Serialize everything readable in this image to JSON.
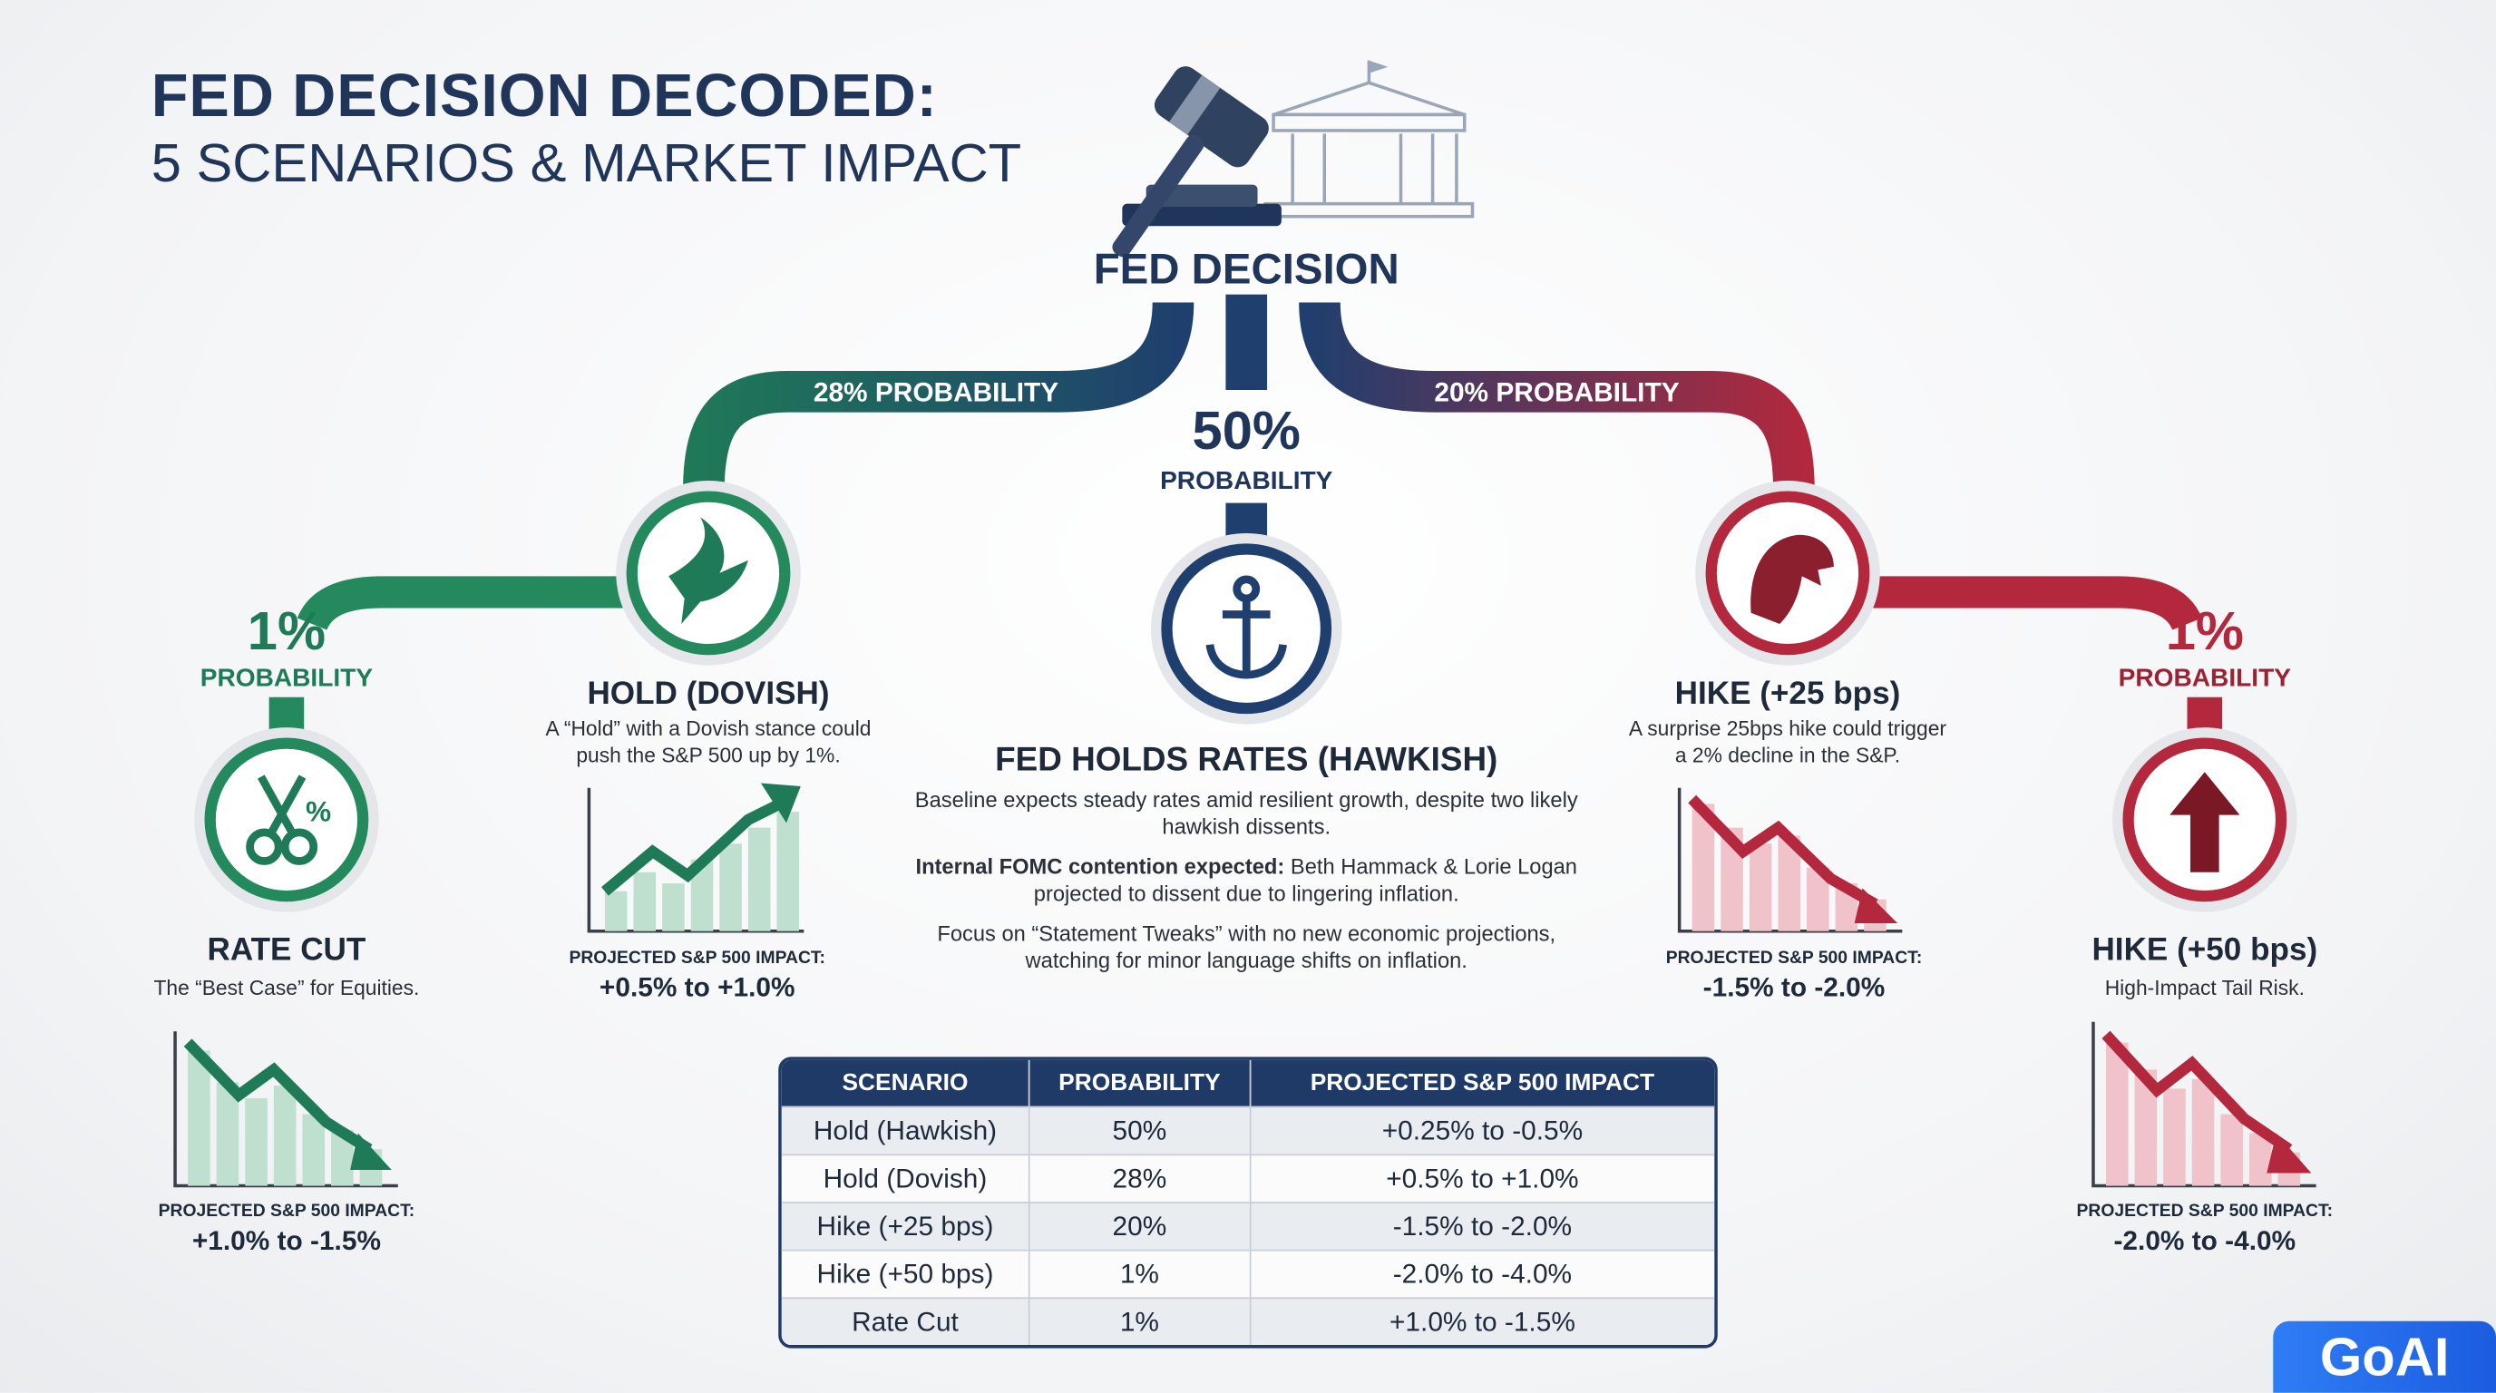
{
  "header": {
    "title": "FED DECISION DECODED:",
    "subtitle": "5 SCENARIOS & MARKET IMPACT"
  },
  "hub": {
    "label": "FED DECISION"
  },
  "branches": {
    "left": "28% PROBABILITY",
    "right": "20% PROBABILITY"
  },
  "center": {
    "probability": "50%",
    "probability_label": "PROBABILITY",
    "title": "FED HOLDS RATES (HAWKISH)",
    "paragraph_1": "Baseline expects steady rates amid resilient growth, despite two likely hawkish dissents.",
    "paragraph_2_bold": "Internal FOMC contention expected:",
    "paragraph_2": "Beth Hammack & Lorie Logan projected to dissent due to lingering inflation.",
    "paragraph_3": "Focus on “Statement Tweaks” with no new economic projections, watching for minor language shifts on inflation."
  },
  "scenarios": [
    {
      "probability": "1%",
      "probability_label": "PROBABILITY",
      "icon_label": "%",
      "name": "RATE CUT",
      "description": "The “Best Case” for Equities.",
      "impact_label": "PROJECTED S&P 500 IMPACT:",
      "impact": "+1.0% to -1.5%"
    },
    {
      "name": "HOLD (DOVISH)",
      "description": "A “Hold” with a Dovish stance could push the S&P 500 up by 1%.",
      "impact_label": "PROJECTED S&P 500 IMPACT:",
      "impact": "+0.5% to +1.0%"
    },
    {
      "name": "HIKE (+25 bps)",
      "description": "A surprise 25bps hike could trigger a 2% decline in the S&P.",
      "impact_label": "PROJECTED S&P 500 IMPACT:",
      "impact": "-1.5% to -2.0%"
    },
    {
      "probability": "1%",
      "probability_label": "PROBABILITY",
      "name": "HIKE (+50 bps)",
      "description": "High-Impact Tail Risk.",
      "impact_label": "PROJECTED S&P 500 IMPACT:",
      "impact": "-2.0% to -4.0%"
    }
  ],
  "table": {
    "headers": [
      "SCENARIO",
      "PROBABILITY",
      "PROJECTED S&P 500 IMPACT"
    ],
    "rows": [
      [
        "Hold (Hawkish)",
        "50%",
        "+0.25% to -0.5%"
      ],
      [
        "Hold (Dovish)",
        "28%",
        "+0.5% to +1.0%"
      ],
      [
        "Hike (+25 bps)",
        "20%",
        "-1.5% to -2.0%"
      ],
      [
        "Hike (+50 bps)",
        "1%",
        "-2.0% to -4.0%"
      ],
      [
        "Rate Cut",
        "1%",
        "+1.0% to -1.5%"
      ]
    ]
  },
  "logo": "GoAI"
}
